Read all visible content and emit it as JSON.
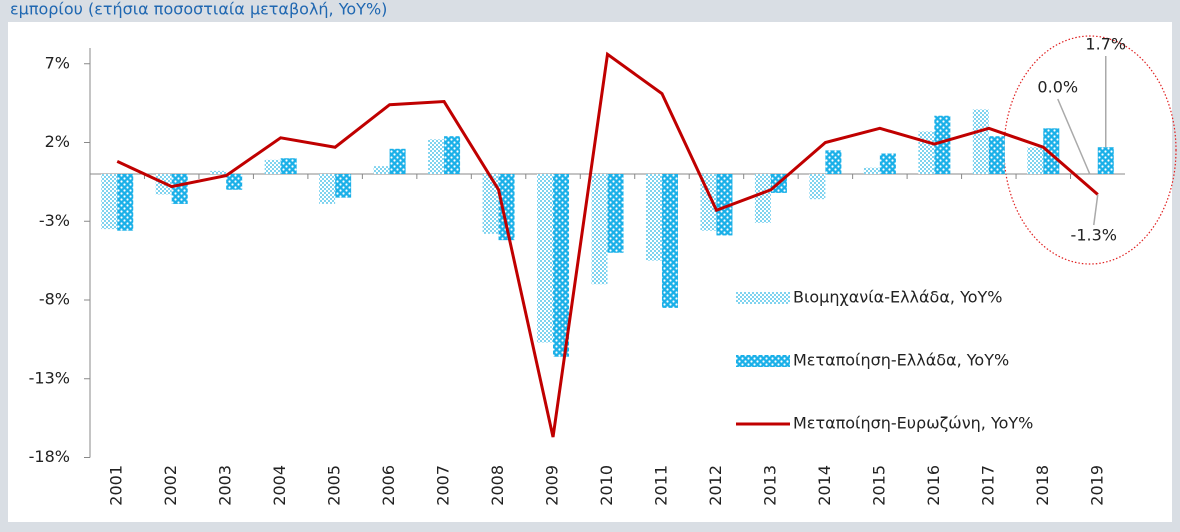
{
  "chart_data": {
    "type": "bar",
    "title": "εμπορίου (ετήσια ποσοστιαία μεταβολή, YoY%)",
    "categories": [
      "2001",
      "2002",
      "2003",
      "2004",
      "2005",
      "2006",
      "2007",
      "2008",
      "2009",
      "2010",
      "2011",
      "2012",
      "2013",
      "2014",
      "2015",
      "2016",
      "2017",
      "2018",
      "2019"
    ],
    "series": [
      {
        "name": "Βιομηχανία-Ελλάδα, YoY%",
        "type": "bar",
        "pattern": "checker",
        "color": "#7fd3ef",
        "values": [
          -3.5,
          -1.3,
          0.2,
          0.9,
          -1.9,
          0.5,
          2.2,
          -3.8,
          -10.7,
          -7.0,
          -5.5,
          -3.6,
          -3.1,
          -1.6,
          0.4,
          2.7,
          4.1,
          1.7,
          0.0
        ],
        "value_labels": [
          null,
          null,
          null,
          null,
          null,
          null,
          null,
          null,
          null,
          null,
          null,
          null,
          null,
          null,
          null,
          null,
          null,
          null,
          "0.0%"
        ]
      },
      {
        "name": "Μεταποίηση-Ελλάδα, YoY%",
        "type": "bar",
        "pattern": "dots",
        "color": "#1ab0e8",
        "values": [
          -3.6,
          -1.9,
          -1.0,
          1.0,
          -1.5,
          1.6,
          2.4,
          -4.2,
          -11.6,
          -5.0,
          -8.5,
          -3.9,
          -1.2,
          1.5,
          1.3,
          3.7,
          2.4,
          2.9,
          1.7
        ],
        "value_labels": [
          null,
          null,
          null,
          null,
          null,
          null,
          null,
          null,
          null,
          null,
          null,
          null,
          null,
          null,
          null,
          null,
          null,
          null,
          "1.7%"
        ]
      },
      {
        "name": "Μεταποίηση-Ευρωζώνη, YoY%",
        "type": "line",
        "color": "#c00000",
        "values": [
          0.8,
          -0.8,
          -0.1,
          2.3,
          1.7,
          4.4,
          4.6,
          -1.0,
          -16.7,
          7.6,
          5.1,
          -2.3,
          -1.0,
          2.0,
          2.9,
          1.9,
          2.9,
          1.7,
          -1.3
        ],
        "value_labels": [
          null,
          null,
          null,
          null,
          null,
          null,
          null,
          null,
          null,
          null,
          null,
          null,
          null,
          null,
          null,
          null,
          null,
          null,
          "-1.3%"
        ]
      }
    ],
    "ylim": [
      -18,
      8
    ],
    "yticks": [
      {
        "value": 7,
        "label": "7%"
      },
      {
        "value": 2,
        "label": "2%"
      },
      {
        "value": -3,
        "label": "-3%"
      },
      {
        "value": -8,
        "label": "-8%"
      },
      {
        "value": -13,
        "label": "-13%"
      },
      {
        "value": -18,
        "label": "-18%"
      }
    ],
    "grid": false
  }
}
